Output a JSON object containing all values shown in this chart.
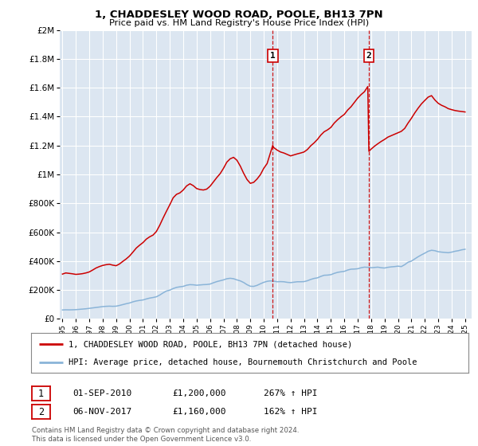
{
  "title": "1, CHADDESLEY WOOD ROAD, POOLE, BH13 7PN",
  "subtitle": "Price paid vs. HM Land Registry's House Price Index (HPI)",
  "ylabel_ticks": [
    "£0",
    "£200K",
    "£400K",
    "£600K",
    "£800K",
    "£1M",
    "£1.2M",
    "£1.4M",
    "£1.6M",
    "£1.8M",
    "£2M"
  ],
  "ytick_values": [
    0,
    200000,
    400000,
    600000,
    800000,
    1000000,
    1200000,
    1400000,
    1600000,
    1800000,
    2000000
  ],
  "ylim": [
    0,
    2000000
  ],
  "background_color": "#ffffff",
  "plot_bg_color": "#dce6f1",
  "grid_color": "#ffffff",
  "hpi_line_color": "#8ab4d8",
  "price_line_color": "#cc0000",
  "vline_color": "#cc0000",
  "legend_label1": "1, CHADDESLEY WOOD ROAD, POOLE, BH13 7PN (detached house)",
  "legend_label2": "HPI: Average price, detached house, Bournemouth Christchurch and Poole",
  "annotation1": [
    "1",
    "01-SEP-2010",
    "£1,200,000",
    "267% ↑ HPI"
  ],
  "annotation2": [
    "2",
    "06-NOV-2017",
    "£1,160,000",
    "162% ↑ HPI"
  ],
  "footnote": "Contains HM Land Registry data © Crown copyright and database right 2024.\nThis data is licensed under the Open Government Licence v3.0.",
  "hpi_data": [
    [
      1995,
      1,
      62000
    ],
    [
      1995,
      4,
      63000
    ],
    [
      1995,
      7,
      62500
    ],
    [
      1995,
      10,
      63000
    ],
    [
      1996,
      1,
      64000
    ],
    [
      1996,
      4,
      66000
    ],
    [
      1996,
      7,
      68000
    ],
    [
      1996,
      10,
      70000
    ],
    [
      1997,
      1,
      73000
    ],
    [
      1997,
      4,
      76000
    ],
    [
      1997,
      7,
      79000
    ],
    [
      1997,
      10,
      82000
    ],
    [
      1998,
      1,
      85000
    ],
    [
      1998,
      4,
      87000
    ],
    [
      1998,
      7,
      88000
    ],
    [
      1998,
      10,
      87000
    ],
    [
      1999,
      1,
      88000
    ],
    [
      1999,
      4,
      93000
    ],
    [
      1999,
      7,
      99000
    ],
    [
      1999,
      10,
      105000
    ],
    [
      2000,
      1,
      110000
    ],
    [
      2000,
      4,
      118000
    ],
    [
      2000,
      7,
      124000
    ],
    [
      2000,
      10,
      128000
    ],
    [
      2001,
      1,
      131000
    ],
    [
      2001,
      4,
      138000
    ],
    [
      2001,
      7,
      144000
    ],
    [
      2001,
      10,
      148000
    ],
    [
      2002,
      1,
      153000
    ],
    [
      2002,
      4,
      165000
    ],
    [
      2002,
      7,
      180000
    ],
    [
      2002,
      10,
      193000
    ],
    [
      2003,
      1,
      199000
    ],
    [
      2003,
      4,
      210000
    ],
    [
      2003,
      7,
      218000
    ],
    [
      2003,
      10,
      222000
    ],
    [
      2004,
      1,
      225000
    ],
    [
      2004,
      4,
      233000
    ],
    [
      2004,
      7,
      237000
    ],
    [
      2004,
      10,
      236000
    ],
    [
      2005,
      1,
      233000
    ],
    [
      2005,
      4,
      235000
    ],
    [
      2005,
      7,
      237000
    ],
    [
      2005,
      10,
      238000
    ],
    [
      2006,
      1,
      241000
    ],
    [
      2006,
      4,
      250000
    ],
    [
      2006,
      7,
      258000
    ],
    [
      2006,
      10,
      264000
    ],
    [
      2007,
      1,
      270000
    ],
    [
      2007,
      4,
      278000
    ],
    [
      2007,
      7,
      281000
    ],
    [
      2007,
      10,
      278000
    ],
    [
      2008,
      1,
      270000
    ],
    [
      2008,
      4,
      263000
    ],
    [
      2008,
      7,
      252000
    ],
    [
      2008,
      10,
      237000
    ],
    [
      2009,
      1,
      226000
    ],
    [
      2009,
      4,
      225000
    ],
    [
      2009,
      7,
      232000
    ],
    [
      2009,
      10,
      243000
    ],
    [
      2010,
      1,
      253000
    ],
    [
      2010,
      4,
      260000
    ],
    [
      2010,
      7,
      263000
    ],
    [
      2010,
      10,
      261000
    ],
    [
      2011,
      1,
      257000
    ],
    [
      2011,
      4,
      258000
    ],
    [
      2011,
      7,
      257000
    ],
    [
      2011,
      10,
      253000
    ],
    [
      2012,
      1,
      251000
    ],
    [
      2012,
      4,
      254000
    ],
    [
      2012,
      7,
      257000
    ],
    [
      2012,
      10,
      257000
    ],
    [
      2013,
      1,
      258000
    ],
    [
      2013,
      4,
      264000
    ],
    [
      2013,
      7,
      273000
    ],
    [
      2013,
      10,
      280000
    ],
    [
      2014,
      1,
      284000
    ],
    [
      2014,
      4,
      294000
    ],
    [
      2014,
      7,
      302000
    ],
    [
      2014,
      10,
      303000
    ],
    [
      2015,
      1,
      306000
    ],
    [
      2015,
      4,
      315000
    ],
    [
      2015,
      7,
      322000
    ],
    [
      2015,
      10,
      326000
    ],
    [
      2016,
      1,
      329000
    ],
    [
      2016,
      4,
      338000
    ],
    [
      2016,
      7,
      344000
    ],
    [
      2016,
      10,
      345000
    ],
    [
      2017,
      1,
      347000
    ],
    [
      2017,
      4,
      354000
    ],
    [
      2017,
      7,
      358000
    ],
    [
      2017,
      10,
      357000
    ],
    [
      2018,
      1,
      354000
    ],
    [
      2018,
      4,
      356000
    ],
    [
      2018,
      7,
      358000
    ],
    [
      2018,
      10,
      354000
    ],
    [
      2019,
      1,
      352000
    ],
    [
      2019,
      4,
      357000
    ],
    [
      2019,
      7,
      360000
    ],
    [
      2019,
      10,
      362000
    ],
    [
      2020,
      1,
      365000
    ],
    [
      2020,
      4,
      362000
    ],
    [
      2020,
      7,
      375000
    ],
    [
      2020,
      10,
      392000
    ],
    [
      2021,
      1,
      400000
    ],
    [
      2021,
      4,
      415000
    ],
    [
      2021,
      7,
      430000
    ],
    [
      2021,
      10,
      443000
    ],
    [
      2022,
      1,
      455000
    ],
    [
      2022,
      4,
      468000
    ],
    [
      2022,
      7,
      475000
    ],
    [
      2022,
      10,
      472000
    ],
    [
      2023,
      1,
      465000
    ],
    [
      2023,
      4,
      462000
    ],
    [
      2023,
      7,
      460000
    ],
    [
      2023,
      10,
      458000
    ],
    [
      2024,
      1,
      462000
    ],
    [
      2024,
      4,
      468000
    ],
    [
      2024,
      7,
      472000
    ],
    [
      2024,
      10,
      478000
    ],
    [
      2025,
      1,
      482000
    ]
  ],
  "price_data": [
    [
      1995,
      1,
      310000
    ],
    [
      1995,
      4,
      318000
    ],
    [
      1995,
      7,
      315000
    ],
    [
      1995,
      10,
      312000
    ],
    [
      1996,
      1,
      308000
    ],
    [
      1996,
      4,
      310000
    ],
    [
      1996,
      7,
      313000
    ],
    [
      1996,
      10,
      318000
    ],
    [
      1997,
      1,
      325000
    ],
    [
      1997,
      4,
      338000
    ],
    [
      1997,
      7,
      352000
    ],
    [
      1997,
      10,
      362000
    ],
    [
      1998,
      1,
      370000
    ],
    [
      1998,
      4,
      375000
    ],
    [
      1998,
      7,
      378000
    ],
    [
      1998,
      10,
      372000
    ],
    [
      1999,
      1,
      368000
    ],
    [
      1999,
      4,
      380000
    ],
    [
      1999,
      7,
      398000
    ],
    [
      1999,
      10,
      415000
    ],
    [
      2000,
      1,
      435000
    ],
    [
      2000,
      4,
      462000
    ],
    [
      2000,
      7,
      490000
    ],
    [
      2000,
      10,
      510000
    ],
    [
      2001,
      1,
      528000
    ],
    [
      2001,
      4,
      552000
    ],
    [
      2001,
      7,
      568000
    ],
    [
      2001,
      10,
      580000
    ],
    [
      2002,
      1,
      605000
    ],
    [
      2002,
      4,
      648000
    ],
    [
      2002,
      7,
      698000
    ],
    [
      2002,
      10,
      745000
    ],
    [
      2003,
      1,
      790000
    ],
    [
      2003,
      4,
      838000
    ],
    [
      2003,
      7,
      862000
    ],
    [
      2003,
      10,
      872000
    ],
    [
      2004,
      1,
      892000
    ],
    [
      2004,
      4,
      920000
    ],
    [
      2004,
      7,
      935000
    ],
    [
      2004,
      10,
      922000
    ],
    [
      2005,
      1,
      902000
    ],
    [
      2005,
      4,
      895000
    ],
    [
      2005,
      7,
      892000
    ],
    [
      2005,
      10,
      898000
    ],
    [
      2006,
      1,
      918000
    ],
    [
      2006,
      4,
      948000
    ],
    [
      2006,
      7,
      978000
    ],
    [
      2006,
      10,
      1005000
    ],
    [
      2007,
      1,
      1042000
    ],
    [
      2007,
      4,
      1085000
    ],
    [
      2007,
      7,
      1108000
    ],
    [
      2007,
      10,
      1118000
    ],
    [
      2008,
      1,
      1098000
    ],
    [
      2008,
      4,
      1058000
    ],
    [
      2008,
      7,
      1008000
    ],
    [
      2008,
      10,
      965000
    ],
    [
      2009,
      1,
      938000
    ],
    [
      2009,
      4,
      945000
    ],
    [
      2009,
      7,
      968000
    ],
    [
      2009,
      10,
      998000
    ],
    [
      2010,
      1,
      1042000
    ],
    [
      2010,
      4,
      1075000
    ],
    [
      2010,
      9,
      1200000
    ],
    [
      2010,
      10,
      1185000
    ],
    [
      2011,
      1,
      1168000
    ],
    [
      2011,
      4,
      1155000
    ],
    [
      2011,
      7,
      1148000
    ],
    [
      2011,
      10,
      1138000
    ],
    [
      2012,
      1,
      1128000
    ],
    [
      2012,
      4,
      1135000
    ],
    [
      2012,
      7,
      1142000
    ],
    [
      2012,
      10,
      1148000
    ],
    [
      2013,
      1,
      1155000
    ],
    [
      2013,
      4,
      1172000
    ],
    [
      2013,
      7,
      1198000
    ],
    [
      2013,
      10,
      1218000
    ],
    [
      2014,
      1,
      1242000
    ],
    [
      2014,
      4,
      1272000
    ],
    [
      2014,
      7,
      1295000
    ],
    [
      2014,
      10,
      1308000
    ],
    [
      2015,
      1,
      1325000
    ],
    [
      2015,
      4,
      1355000
    ],
    [
      2015,
      7,
      1378000
    ],
    [
      2015,
      10,
      1398000
    ],
    [
      2016,
      1,
      1415000
    ],
    [
      2016,
      4,
      1445000
    ],
    [
      2016,
      7,
      1468000
    ],
    [
      2016,
      10,
      1498000
    ],
    [
      2017,
      1,
      1528000
    ],
    [
      2017,
      4,
      1552000
    ],
    [
      2017,
      7,
      1572000
    ],
    [
      2017,
      10,
      1608000
    ],
    [
      2017,
      11,
      1160000
    ],
    [
      2018,
      1,
      1175000
    ],
    [
      2018,
      4,
      1195000
    ],
    [
      2018,
      7,
      1212000
    ],
    [
      2018,
      10,
      1228000
    ],
    [
      2019,
      1,
      1242000
    ],
    [
      2019,
      4,
      1258000
    ],
    [
      2019,
      7,
      1268000
    ],
    [
      2019,
      10,
      1278000
    ],
    [
      2020,
      1,
      1288000
    ],
    [
      2020,
      4,
      1298000
    ],
    [
      2020,
      7,
      1318000
    ],
    [
      2020,
      10,
      1355000
    ],
    [
      2021,
      1,
      1388000
    ],
    [
      2021,
      4,
      1425000
    ],
    [
      2021,
      7,
      1458000
    ],
    [
      2021,
      10,
      1488000
    ],
    [
      2022,
      1,
      1512000
    ],
    [
      2022,
      4,
      1535000
    ],
    [
      2022,
      7,
      1545000
    ],
    [
      2022,
      10,
      1515000
    ],
    [
      2023,
      1,
      1492000
    ],
    [
      2023,
      4,
      1478000
    ],
    [
      2023,
      7,
      1468000
    ],
    [
      2023,
      10,
      1455000
    ],
    [
      2024,
      1,
      1448000
    ],
    [
      2024,
      4,
      1442000
    ],
    [
      2024,
      7,
      1438000
    ],
    [
      2024,
      10,
      1435000
    ],
    [
      2025,
      1,
      1432000
    ]
  ],
  "vline1_x": 2010.67,
  "vline2_x": 2017.83,
  "marker1_y": 1820000,
  "marker2_y": 1820000,
  "xmin": 1994.8,
  "xmax": 2025.5
}
